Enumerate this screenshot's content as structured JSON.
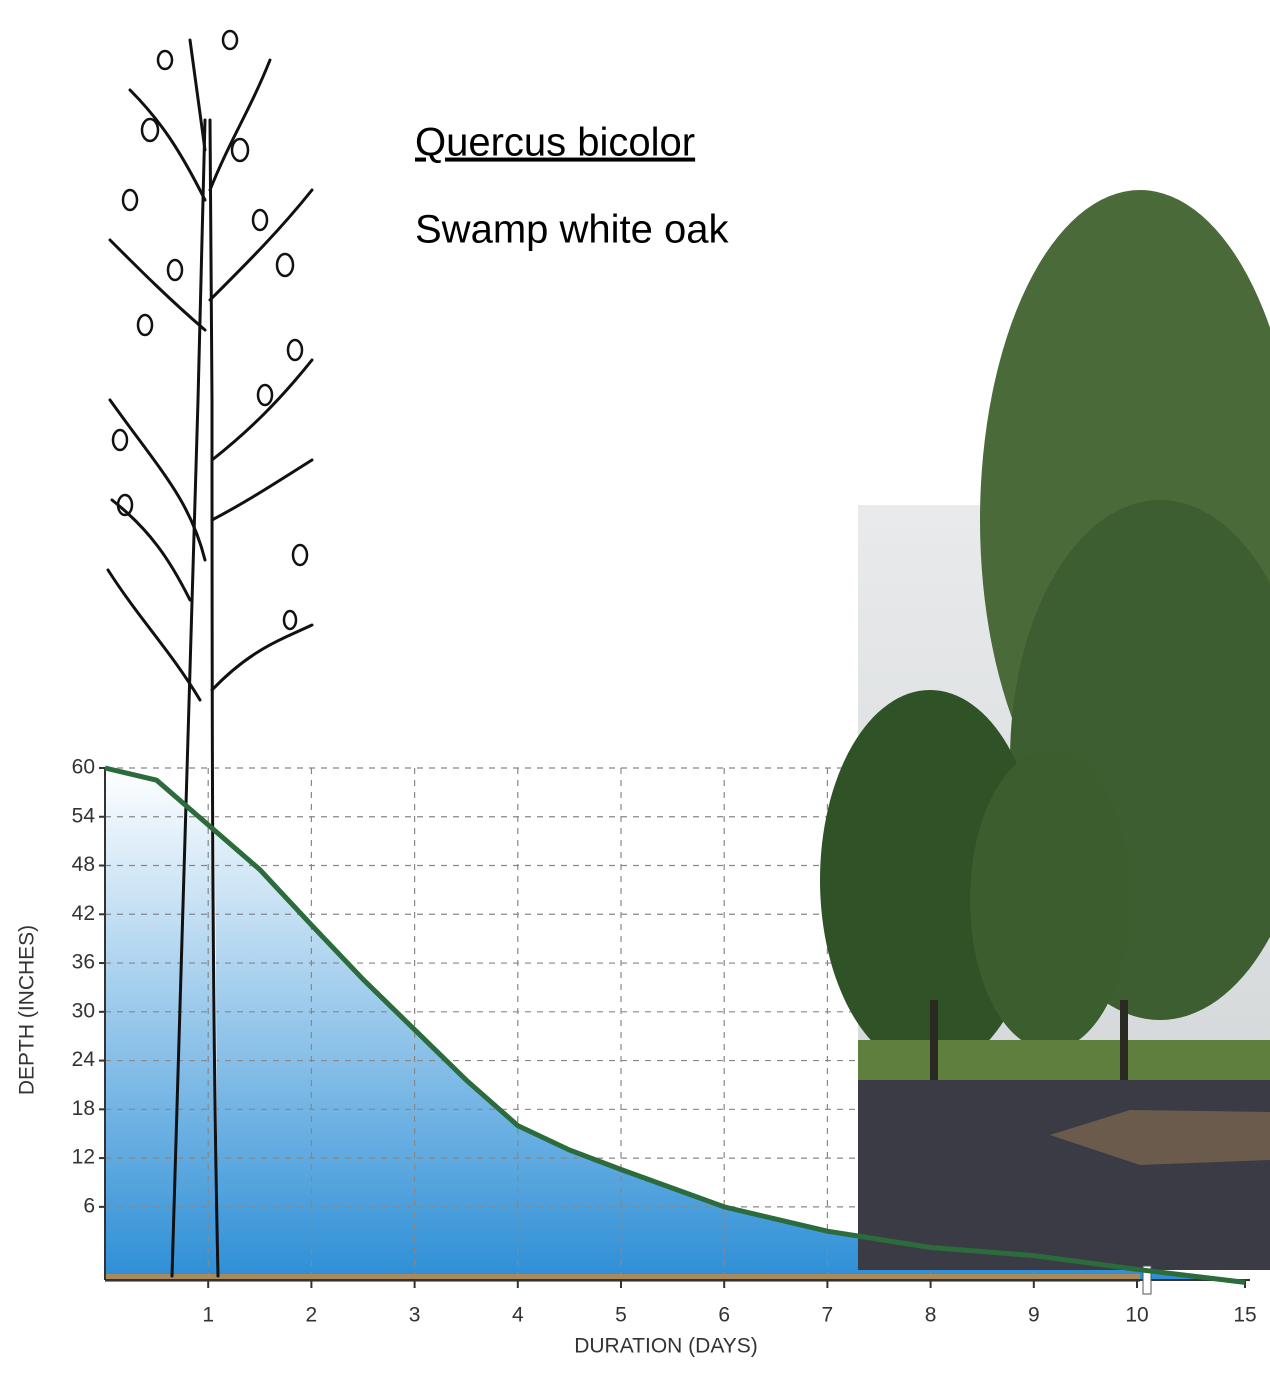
{
  "chart_data": {
    "type": "area",
    "title": "Quercus bicolor",
    "subtitle": "Swamp white oak",
    "x_label": "DURATION (DAYS)",
    "y_label": "DEPTH  (INCHES)",
    "x": [
      0,
      0.5,
      1,
      1.5,
      2,
      2.5,
      3,
      3.5,
      4,
      4.5,
      5,
      6,
      7,
      8,
      9,
      10,
      15
    ],
    "values": [
      60,
      58.5,
      53,
      47.5,
      40.7,
      34,
      27.8,
      21.6,
      16,
      13,
      10.6,
      6,
      3,
      1,
      0,
      -1.7,
      -3.3
    ],
    "color": "#2b6b3c",
    "xlim": [
      0,
      15
    ],
    "xticks": [
      1,
      2,
      3,
      4,
      5,
      6,
      7,
      8,
      9,
      10,
      15
    ],
    "axis_break": 10,
    "ylim": [
      -3,
      60
    ],
    "yticks": [
      6,
      12,
      18,
      24,
      30,
      36,
      42,
      48,
      54,
      60
    ],
    "grid": true
  }
}
